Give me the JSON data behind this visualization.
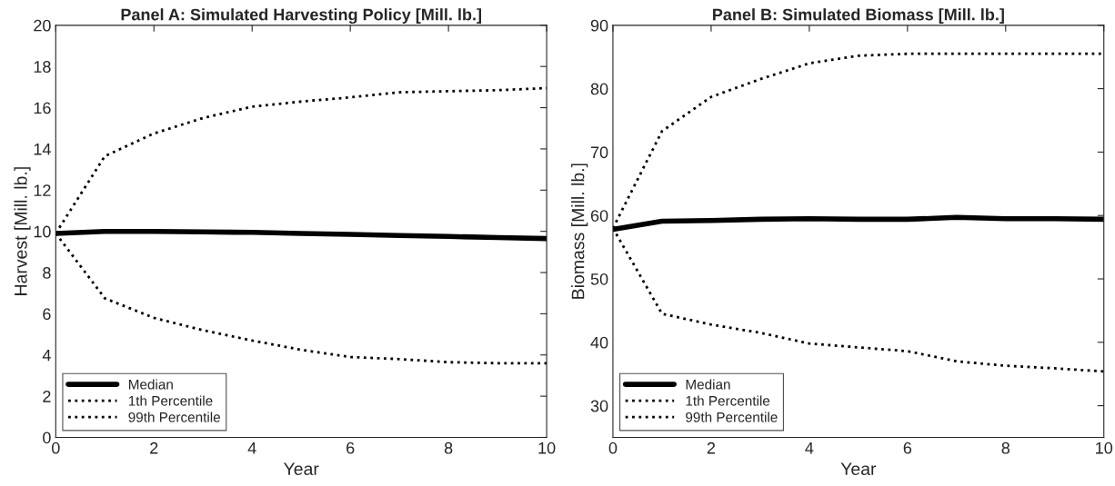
{
  "chart_data": [
    {
      "type": "line",
      "title": "Panel A: Simulated Harvesting Policy [Mill. lb.]",
      "xlabel": "Year",
      "ylabel": "Harvest [Mill. lb.]",
      "x": [
        0,
        1,
        2,
        3,
        4,
        5,
        6,
        7,
        8,
        9,
        10
      ],
      "xlim": [
        0,
        10
      ],
      "xticks": [
        0,
        2,
        4,
        6,
        8,
        10
      ],
      "ylim": [
        0,
        20
      ],
      "yticks": [
        0,
        2,
        4,
        6,
        8,
        10,
        12,
        14,
        16,
        18,
        20
      ],
      "grid": false,
      "legend": "bottom left",
      "series": [
        {
          "name": "Median",
          "color": "#000000",
          "line_style": "solid",
          "values": [
            9.9,
            10.0,
            10.0,
            9.97,
            9.95,
            9.9,
            9.85,
            9.8,
            9.75,
            9.7,
            9.65
          ]
        },
        {
          "name": "1th Percentile",
          "color": "#000000",
          "line_style": "dotted",
          "values": [
            9.9,
            6.75,
            5.8,
            5.2,
            4.7,
            4.25,
            3.9,
            3.8,
            3.65,
            3.6,
            3.6
          ]
        },
        {
          "name": "99th Percentile",
          "color": "#000000",
          "line_style": "dotted",
          "values": [
            9.9,
            13.65,
            14.75,
            15.5,
            16.05,
            16.3,
            16.5,
            16.75,
            16.8,
            16.85,
            16.95
          ]
        }
      ]
    },
    {
      "type": "line",
      "title": "Panel B: Simulated Biomass [Mill. lb.]",
      "xlabel": "Year",
      "ylabel": "Biomass [Mill. lb.]",
      "x": [
        0,
        1,
        2,
        3,
        4,
        5,
        6,
        7,
        8,
        9,
        10
      ],
      "xlim": [
        0,
        10
      ],
      "xticks": [
        0,
        2,
        4,
        6,
        8,
        10
      ],
      "ylim": [
        25,
        90
      ],
      "yticks": [
        30,
        40,
        50,
        60,
        70,
        80,
        90
      ],
      "grid": false,
      "legend": "bottom left",
      "series": [
        {
          "name": "Median",
          "color": "#000000",
          "line_style": "solid",
          "values": [
            57.8,
            59.1,
            59.2,
            59.4,
            59.5,
            59.4,
            59.4,
            59.7,
            59.5,
            59.5,
            59.4
          ]
        },
        {
          "name": "1th Percentile",
          "color": "#000000",
          "line_style": "dotted",
          "values": [
            58,
            44.5,
            42.8,
            41.5,
            39.8,
            39.2,
            38.6,
            37,
            36.3,
            35.9,
            35.4
          ]
        },
        {
          "name": "99th Percentile",
          "color": "#000000",
          "line_style": "dotted",
          "values": [
            58,
            73.3,
            78.7,
            81.5,
            84,
            85.2,
            85.5,
            85.5,
            85.5,
            85.5,
            85.5
          ]
        }
      ]
    }
  ]
}
